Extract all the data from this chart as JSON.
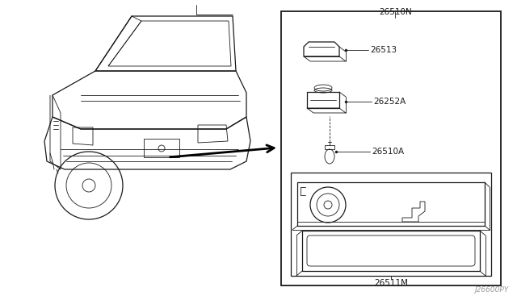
{
  "bg_color": "#ffffff",
  "line_color": "#1a1a1a",
  "gray": "#999999",
  "fig_width": 6.4,
  "fig_height": 3.72,
  "watermark": "J26600PY",
  "label_26510N": "26510N",
  "label_26513": "26513",
  "label_26252A": "26252A",
  "label_26510A": "26510A",
  "label_26511M": "26511M"
}
